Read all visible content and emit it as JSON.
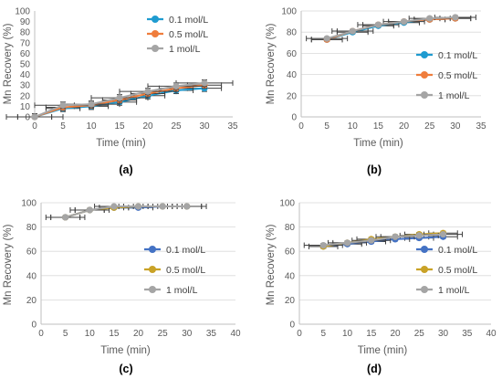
{
  "chart_data": [
    {
      "panel_label": "(a)",
      "type": "line",
      "xlabel": "Time (min)",
      "ylabel": "Mn Recovery (%)",
      "xlim": [
        0,
        35
      ],
      "ylim": [
        0,
        100
      ],
      "xticks": [
        0,
        5,
        10,
        15,
        20,
        25,
        30,
        35
      ],
      "yticks": [
        0,
        10,
        20,
        30,
        40,
        50,
        60,
        70,
        80,
        90,
        100
      ],
      "legend_position": "top-right",
      "x": [
        0,
        5,
        10,
        15,
        20,
        25,
        30
      ],
      "series": [
        {
          "name": "0.1 mol/L",
          "color": "#1f9bd0",
          "values": [
            0,
            8,
            10,
            14,
            20,
            25,
            27
          ],
          "xerr": 3,
          "yerr": 3
        },
        {
          "name": "0.5 mol/L",
          "color": "#ef7d3c",
          "values": [
            0,
            9,
            11,
            16,
            22,
            27,
            30
          ],
          "xerr": 3,
          "yerr": 3
        },
        {
          "name": "1 mol/L",
          "color": "#a5a5a5",
          "values": [
            0,
            11,
            12,
            18,
            24,
            29,
            32
          ],
          "xerr": 5,
          "yerr": 3
        }
      ]
    },
    {
      "panel_label": "(b)",
      "type": "line",
      "xlabel": "Time (min)",
      "ylabel": "Mn Recovery (%)",
      "xlim": [
        0,
        35
      ],
      "ylim": [
        0,
        100
      ],
      "xticks": [
        0,
        5,
        10,
        15,
        20,
        25,
        30,
        35
      ],
      "yticks": [
        0,
        20,
        40,
        60,
        80,
        100
      ],
      "legend_position": "right",
      "x": [
        5,
        10,
        15,
        20,
        25,
        30
      ],
      "series": [
        {
          "name": "0.1 mol/L",
          "color": "#1f9bd0",
          "values": [
            73,
            80,
            86,
            89,
            92,
            93
          ],
          "xerr": 3,
          "yerr": 1.5
        },
        {
          "name": "0.5 mol/L",
          "color": "#ef7d3c",
          "values": [
            73,
            81,
            87,
            90,
            92,
            93
          ],
          "xerr": 3,
          "yerr": 1.5
        },
        {
          "name": "1 mol/L",
          "color": "#a5a5a5",
          "values": [
            74,
            81,
            87,
            90,
            93,
            94
          ],
          "xerr": 4,
          "yerr": 1.5
        }
      ]
    },
    {
      "panel_label": "(c)",
      "type": "line",
      "xlabel": "Time (min)",
      "ylabel": "Mn Recovery (%)",
      "xlim": [
        0,
        40
      ],
      "ylim": [
        0,
        100
      ],
      "xticks": [
        0,
        5,
        10,
        15,
        20,
        25,
        30,
        35,
        40
      ],
      "yticks": [
        0,
        20,
        40,
        60,
        80,
        100
      ],
      "legend_position": "right",
      "x": [
        5,
        10,
        15,
        20,
        25,
        30
      ],
      "series": [
        {
          "name": "0.1 mol/L",
          "color": "#4472c4",
          "values": [
            88,
            94,
            96,
            96,
            97,
            97
          ],
          "xerr": 3,
          "yerr": 1
        },
        {
          "name": "0.5 mol/L",
          "color": "#c9a227",
          "values": [
            88,
            94,
            96,
            97,
            97,
            97
          ],
          "xerr": 3,
          "yerr": 1
        },
        {
          "name": "1 mol/L",
          "color": "#a5a5a5",
          "values": [
            88,
            94,
            97,
            97,
            97,
            97
          ],
          "xerr": 4,
          "yerr": 1
        }
      ]
    },
    {
      "panel_label": "(d)",
      "type": "line",
      "xlabel": "Time (min)",
      "ylabel": "Mn Recovery (%)",
      "xlim": [
        0,
        40
      ],
      "ylim": [
        0,
        100
      ],
      "xticks": [
        0,
        5,
        10,
        15,
        20,
        25,
        30,
        35,
        40
      ],
      "yticks": [
        0,
        20,
        40,
        60,
        80,
        100
      ],
      "legend_position": "right",
      "x": [
        5,
        10,
        15,
        20,
        25,
        30
      ],
      "series": [
        {
          "name": "0.1 mol/L",
          "color": "#4472c4",
          "values": [
            64,
            66,
            68,
            70,
            71,
            72
          ],
          "xerr": 3,
          "yerr": 1.5
        },
        {
          "name": "0.5 mol/L",
          "color": "#c9a227",
          "values": [
            64,
            67,
            70,
            72,
            74,
            75
          ],
          "xerr": 3,
          "yerr": 1.5
        },
        {
          "name": "1 mol/L",
          "color": "#a5a5a5",
          "values": [
            65,
            67,
            69,
            72,
            73,
            74
          ],
          "xerr": 4,
          "yerr": 1.5
        }
      ]
    }
  ]
}
